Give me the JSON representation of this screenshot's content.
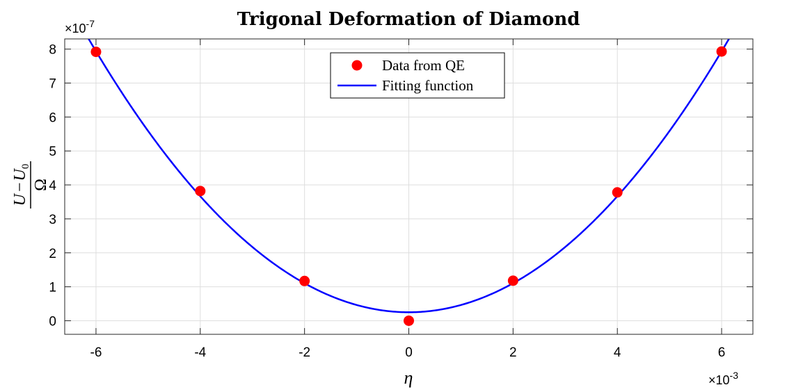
{
  "chart_data": {
    "type": "scatter",
    "title": "Trigonal Deformation of Diamond",
    "xlabel": "η",
    "ylabel": {
      "numerator": "U",
      "minus": "−",
      "sub_var": "U",
      "sub_index": "0",
      "denominator": "Ω"
    },
    "x_exponent": {
      "base": "×10",
      "power": "-3"
    },
    "y_exponent": {
      "base": "×10",
      "power": "-7"
    },
    "xlim": [
      -6.6,
      6.6
    ],
    "ylim": [
      -0.4,
      8.3
    ],
    "x_ticks": [
      -6,
      -4,
      -2,
      0,
      2,
      4,
      6
    ],
    "x_tick_labels": [
      "-6",
      "-4",
      "-2",
      "0",
      "2",
      "4",
      "6"
    ],
    "y_ticks": [
      0,
      1,
      2,
      3,
      4,
      5,
      6,
      7,
      8
    ],
    "y_tick_labels": [
      "0",
      "1",
      "2",
      "3",
      "4",
      "5",
      "6",
      "7",
      "8"
    ],
    "grid": true,
    "legend_position": "top-center",
    "series": [
      {
        "name": "Data from QE",
        "kind": "points",
        "color": "#ff0000",
        "x": [
          -6,
          -4,
          -2,
          0,
          2,
          4,
          6
        ],
        "y": [
          7.92,
          3.82,
          1.17,
          0.0,
          1.18,
          3.78,
          7.93
        ]
      },
      {
        "name": "Fitting function",
        "kind": "curve",
        "color": "#0000ff",
        "fit": {
          "form": "a*x^2 + c",
          "a": 0.2135,
          "c": 0.25
        }
      }
    ]
  }
}
